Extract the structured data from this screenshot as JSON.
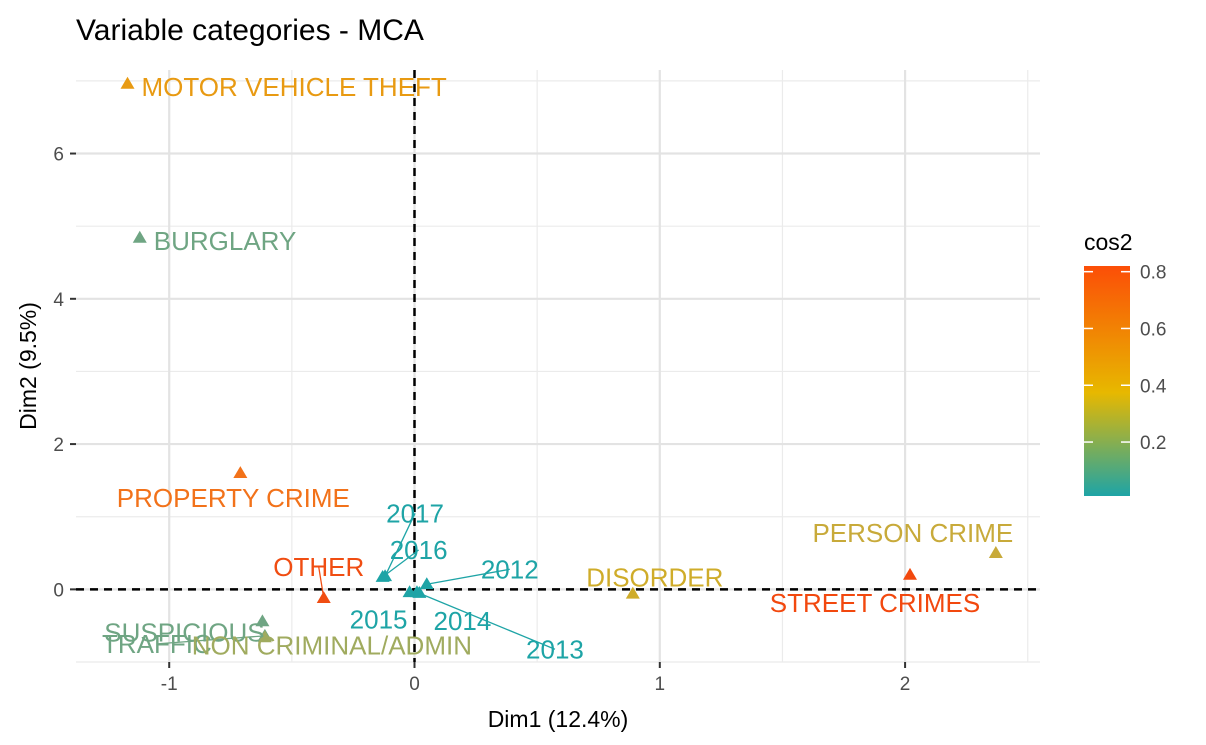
{
  "chart_data": {
    "type": "scatter",
    "title": "Variable categories - MCA",
    "xlabel": "Dim1 (12.4%)",
    "ylabel": "Dim2 (9.5%)",
    "xlim": [
      -1.38,
      2.55
    ],
    "ylim": [
      -1.0,
      7.15
    ],
    "x_ticks": [
      -1,
      0,
      1,
      2
    ],
    "y_ticks": [
      0,
      2,
      4,
      6
    ],
    "x_tick_labels": [
      "-1",
      "0",
      "1",
      "2"
    ],
    "y_tick_labels": [
      "0",
      "2",
      "4",
      "6"
    ],
    "grid": true,
    "reference_lines": {
      "x": 0,
      "y": 0,
      "style": "dashed"
    },
    "marker": "triangle",
    "color_scale": {
      "title": "cos2",
      "ticks": [
        0.2,
        0.4,
        0.6,
        0.8
      ],
      "tick_labels": [
        "0.2",
        "0.4",
        "0.6",
        "0.8"
      ],
      "range": [
        0.01,
        0.82
      ],
      "colors": [
        "#1ea4a6",
        "#e7b800",
        "#fc4e07"
      ],
      "position": "right"
    },
    "points": [
      {
        "label": "MOTOR VEHICLE THEFT",
        "x": -1.17,
        "y": 6.96,
        "cos2": 0.45,
        "color": "#e89a12"
      },
      {
        "label": "BURGLARY",
        "x": -1.12,
        "y": 4.84,
        "cos2": 0.13,
        "color": "#6fa583"
      },
      {
        "label": "PROPERTY CRIME",
        "x": -0.71,
        "y": 1.6,
        "cos2": 0.62,
        "color": "#f2721a"
      },
      {
        "label": "OTHER",
        "x": -0.37,
        "y": -0.12,
        "cos2": 0.78,
        "color": "#f04d12"
      },
      {
        "label": "SUSPICIOUS",
        "x": -0.62,
        "y": -0.44,
        "cos2": 0.15,
        "color": "#6fa583"
      },
      {
        "label": "TRAFFIC",
        "x": -0.61,
        "y": -0.64,
        "cos2": 0.14,
        "color": "#6fa583"
      },
      {
        "label": "NON CRIMINAL/ADMIN",
        "x": -0.61,
        "y": -0.66,
        "cos2": 0.25,
        "color": "#a0ab5f"
      },
      {
        "label": "2017",
        "x": -0.12,
        "y": 0.18,
        "cos2": 0.03,
        "color": "#1ea4a6"
      },
      {
        "label": "2016",
        "x": -0.13,
        "y": 0.17,
        "cos2": 0.03,
        "color": "#1ea4a6"
      },
      {
        "label": "2015",
        "x": -0.02,
        "y": -0.04,
        "cos2": 0.02,
        "color": "#1ea4a6"
      },
      {
        "label": "2014",
        "x": 0.02,
        "y": -0.05,
        "cos2": 0.02,
        "color": "#1ea4a6"
      },
      {
        "label": "2013",
        "x": 0.01,
        "y": -0.04,
        "cos2": 0.02,
        "color": "#1ea4a6"
      },
      {
        "label": "2012",
        "x": 0.05,
        "y": 0.07,
        "cos2": 0.02,
        "color": "#1ea4a6"
      },
      {
        "label": "DISORDER",
        "x": 0.89,
        "y": -0.06,
        "cos2": 0.35,
        "color": "#cfac2a"
      },
      {
        "label": "PERSON CRIME",
        "x": 2.37,
        "y": 0.5,
        "cos2": 0.33,
        "color": "#c8aa3a"
      },
      {
        "label": "STREET CRIMES",
        "x": 2.02,
        "y": 0.2,
        "cos2": 0.8,
        "color": "#f2480e"
      }
    ]
  }
}
